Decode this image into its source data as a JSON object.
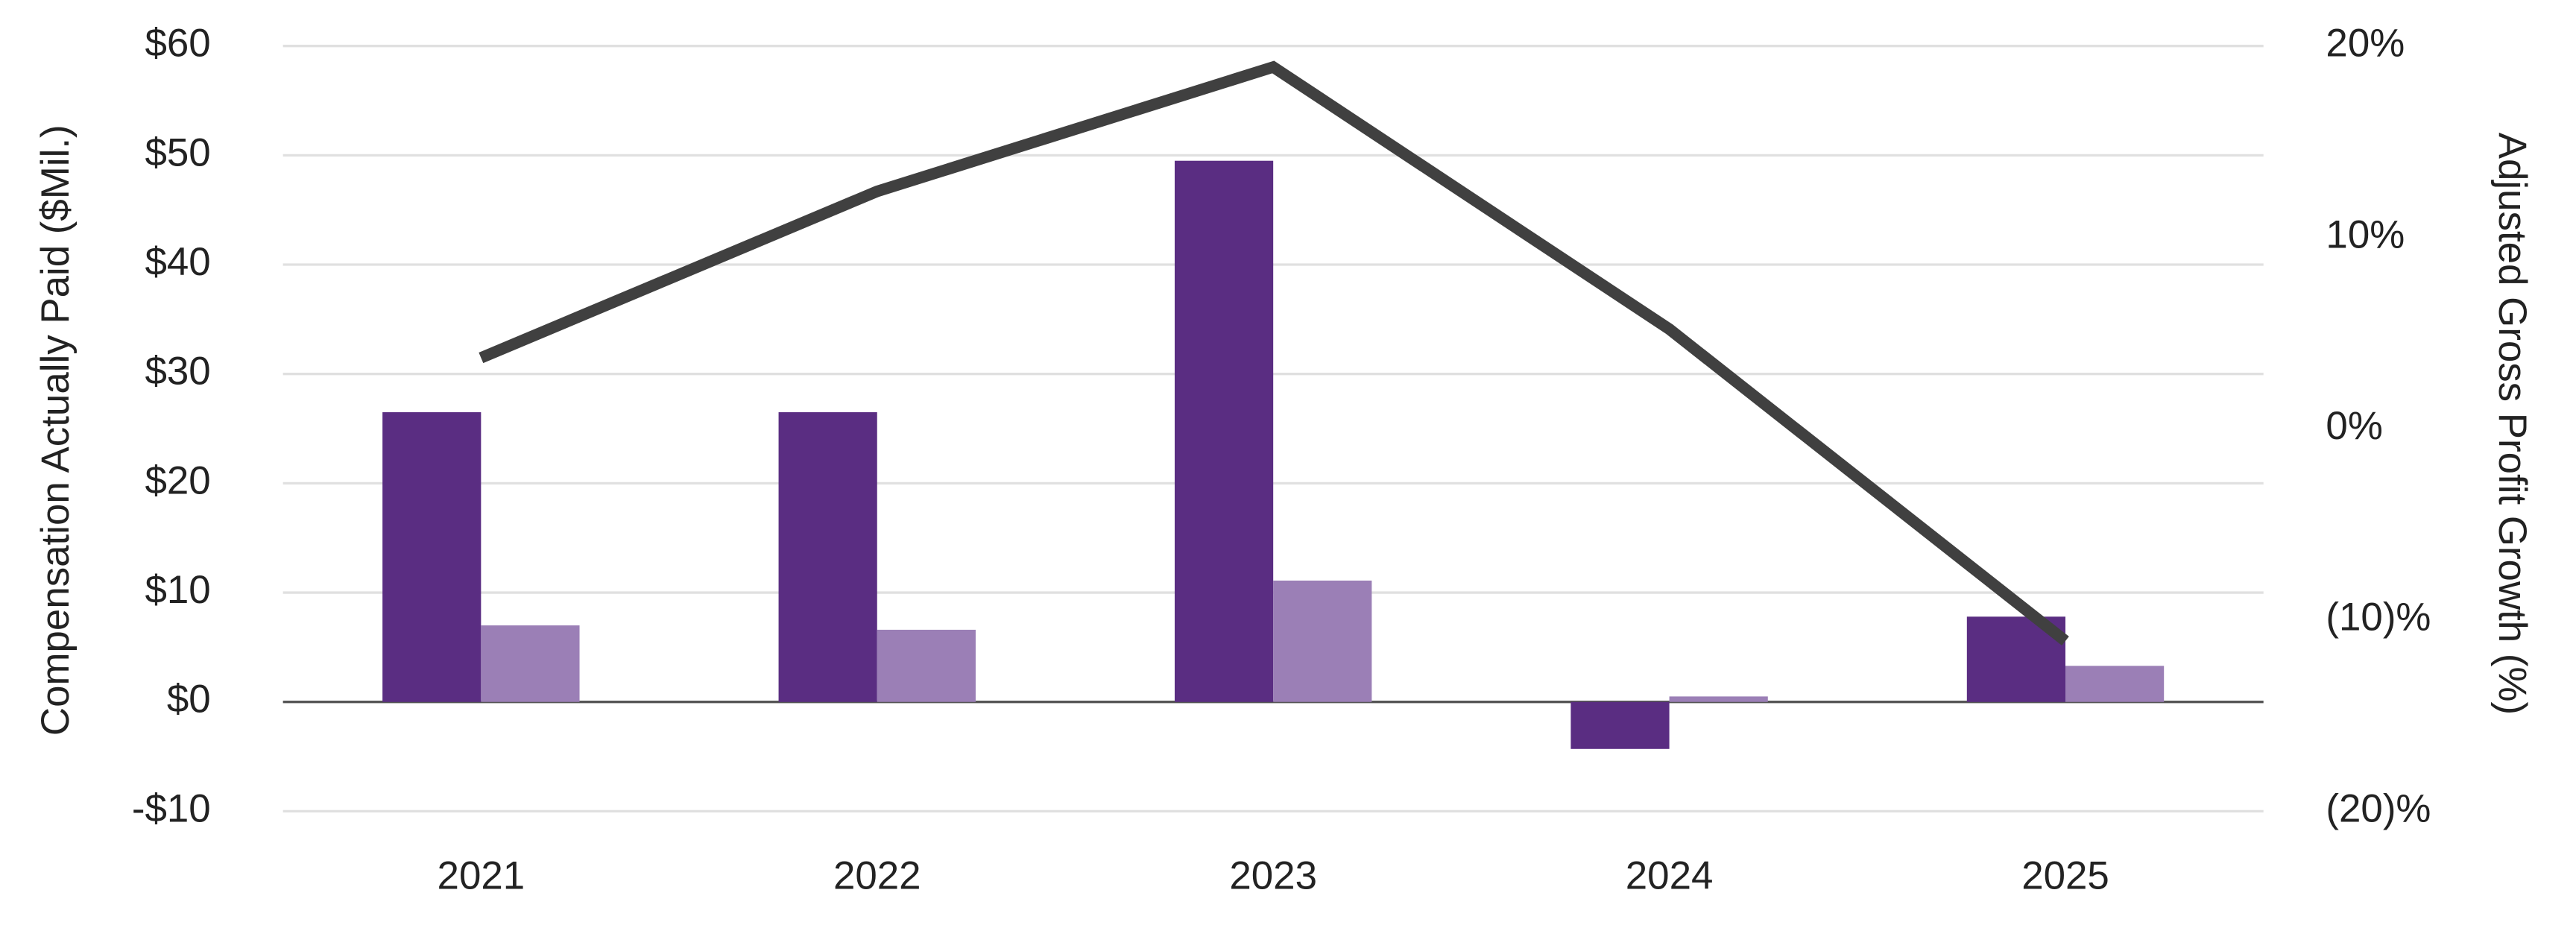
{
  "chart_data": {
    "type": "bar",
    "y_label": "Compensation Actually Paid ($Mil.)",
    "y2_label": "Adjusted Gross Profit Growth (%)",
    "categories": [
      "2021",
      "2022",
      "2023",
      "2024",
      "2025"
    ],
    "series": [
      {
        "type": "bar",
        "color": "#5a2d82",
        "values": [
          26.5,
          26.5,
          49.5,
          -4.3,
          7.8
        ]
      },
      {
        "type": "bar",
        "color": "#9b7fb6",
        "values": [
          7.0,
          6.6,
          11.1,
          0.5,
          3.3
        ]
      },
      {
        "type": "line",
        "axis": "y2",
        "color": "#404040",
        "values": [
          3.7,
          12.4,
          18.9,
          5.2,
          -11.1
        ]
      }
    ],
    "ylim": [
      -10,
      60
    ],
    "yticks": [
      {
        "value": -10,
        "label": "-$10"
      },
      {
        "value": 0,
        "label": "$0"
      },
      {
        "value": 10,
        "label": "$10"
      },
      {
        "value": 20,
        "label": "$20"
      },
      {
        "value": 30,
        "label": "$30"
      },
      {
        "value": 40,
        "label": "$40"
      },
      {
        "value": 50,
        "label": "$50"
      },
      {
        "value": 60,
        "label": "$60"
      }
    ],
    "y2lim": [
      -20,
      20
    ],
    "y2ticks": [
      {
        "value": -20,
        "label": "(20)%"
      },
      {
        "value": -10,
        "label": "(10)%"
      },
      {
        "value": 0,
        "label": "0%"
      },
      {
        "value": 10,
        "label": "10%"
      },
      {
        "value": 20,
        "label": "20%"
      }
    ],
    "grid": true
  }
}
